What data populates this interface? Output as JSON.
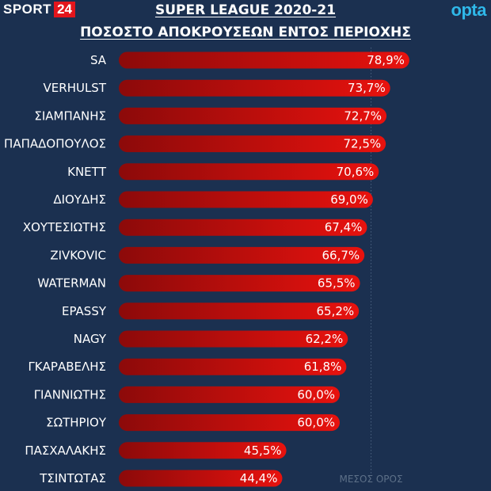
{
  "brand": {
    "sport_word": "SPORT",
    "sport_num": "24",
    "provider": "opta"
  },
  "chart_data": {
    "type": "bar",
    "orientation": "horizontal",
    "title": "SUPER LEAGUE 2020-21",
    "subtitle": "ΠΟΣΟΣΤΟ ΑΠΟΚΡΟΥΣΕΩΝ ΕΝΤΟΣ ΠΕΡΙΟΧΗΣ",
    "categories": [
      "SA",
      "VERHULST",
      "ΣΙΑΜΠΑΝΗΣ",
      "ΠΑΠΑΔΟΠΟΥΛΟΣ",
      "ΚΝΕΤΤ",
      "ΔΙΟΥΔΗΣ",
      "ΧΟΥΤΕΣΙΩΤΗΣ",
      "ZIVKOVIC",
      "WATERMAN",
      "EPASSY",
      "NAGY",
      "ΓΚΑΡΑΒΕΛΗΣ",
      "ΓΙΑΝΝΙΩΤΗΣ",
      "ΣΩΤΗΡΙΟΥ",
      "ΠΑΣΧΑΛΑΚΗΣ",
      "ΤΣΙΝΤΩΤΑΣ"
    ],
    "values": [
      78.9,
      73.7,
      72.7,
      72.5,
      70.6,
      69.0,
      67.4,
      66.7,
      65.5,
      65.2,
      62.2,
      61.8,
      60.0,
      60.0,
      45.5,
      44.4
    ],
    "value_labels": [
      "78,9%",
      "73,7%",
      "72,7%",
      "72,5%",
      "70,6%",
      "69,0%",
      "67,4%",
      "66,7%",
      "65,5%",
      "65,2%",
      "62,2%",
      "61,8%",
      "60,0%",
      "60,0%",
      "45,5%",
      "44,4%"
    ],
    "reference_line": {
      "label": "ΜΕΣΟΣ ΟΡΟΣ",
      "value": 68.5
    },
    "xlim": [
      0,
      80
    ],
    "grid": false,
    "colors": {
      "bar_dark": "#8c0a0a",
      "bar_light": "#e8120e",
      "background": "#1b3050",
      "average_line": "#4a6280"
    }
  }
}
